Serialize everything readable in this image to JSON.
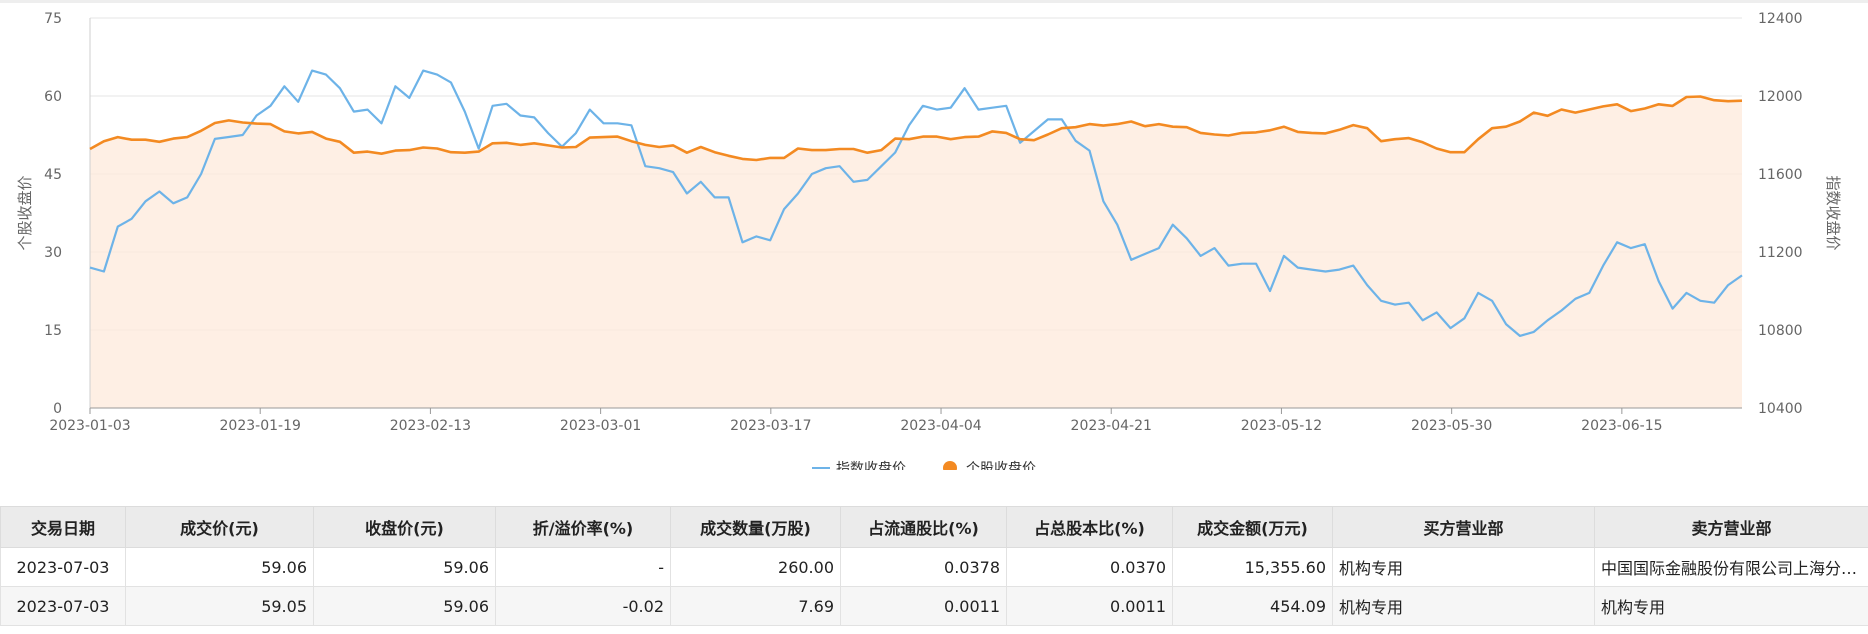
{
  "chart_data": {
    "type": "line",
    "x_ticks": [
      "2023-01-03",
      "2023-01-19",
      "2023-02-13",
      "2023-03-01",
      "2023-03-17",
      "2023-04-04",
      "2023-04-21",
      "2023-05-12",
      "2023-05-30",
      "2023-06-15"
    ],
    "y_left": {
      "label": "个股收盘价",
      "min": 0,
      "max": 75,
      "ticks": [
        0,
        15,
        30,
        45,
        60,
        75
      ]
    },
    "y_right": {
      "label": "指数收盘价",
      "min": 10400,
      "max": 12400,
      "ticks": [
        10400,
        10800,
        11200,
        11600,
        12000,
        12400
      ]
    },
    "grid": true,
    "legend_position": "bottom",
    "series": [
      {
        "name": "指数收盘价",
        "axis": "right",
        "color": "#6db3e8",
        "marker": "line",
        "values": [
          11120,
          11100,
          11330,
          11370,
          11460,
          11510,
          11450,
          11480,
          11600,
          11780,
          11790,
          11800,
          11900,
          11950,
          12050,
          11970,
          12130,
          12110,
          12040,
          11920,
          11930,
          11860,
          12050,
          11990,
          12130,
          12110,
          12070,
          11920,
          11730,
          11950,
          11960,
          11900,
          11890,
          11810,
          11740,
          11810,
          11930,
          11860,
          11860,
          11850,
          11640,
          11630,
          11610,
          11500,
          11560,
          11480,
          11480,
          11250,
          11280,
          11260,
          11420,
          11500,
          11600,
          11630,
          11640,
          11560,
          11570,
          11640,
          11710,
          11850,
          11950,
          11930,
          11940,
          12040,
          11930,
          11940,
          11950,
          11760,
          11820,
          11880,
          11880,
          11770,
          11720,
          11460,
          11340,
          11160,
          11190,
          11220,
          11340,
          11270,
          11180,
          11220,
          11130,
          11140,
          11140,
          11000,
          11180,
          11120,
          11110,
          11100,
          11110,
          11130,
          11030,
          10950,
          10930,
          10940,
          10850,
          10890,
          10810,
          10860,
          10990,
          10950,
          10830,
          10770,
          10790,
          10850,
          10900,
          10960,
          10990,
          11130,
          11250,
          11220,
          11240,
          11050,
          10910,
          10990,
          10950,
          10940,
          11030,
          11080
        ]
      },
      {
        "name": "个股收盘价",
        "axis": "left",
        "color": "#f38a22",
        "marker": "dot",
        "area": true,
        "values": [
          49.8,
          51.3,
          52.1,
          51.6,
          51.6,
          51.2,
          51.8,
          52.1,
          53.3,
          54.8,
          55.3,
          54.9,
          54.7,
          54.6,
          53.2,
          52.8,
          53.1,
          51.8,
          51.2,
          49.1,
          49.3,
          48.9,
          49.5,
          49.6,
          50.1,
          49.9,
          49.2,
          49.1,
          49.3,
          50.9,
          51.0,
          50.6,
          50.9,
          50.5,
          50.1,
          50.2,
          52.0,
          52.1,
          52.2,
          51.3,
          50.6,
          50.2,
          50.5,
          49.1,
          50.2,
          49.2,
          48.5,
          47.9,
          47.7,
          48.1,
          48.1,
          49.9,
          49.6,
          49.6,
          49.8,
          49.8,
          49.1,
          49.6,
          51.8,
          51.7,
          52.2,
          52.2,
          51.7,
          52.1,
          52.2,
          53.2,
          52.9,
          51.7,
          51.5,
          52.6,
          53.8,
          54.0,
          54.6,
          54.3,
          54.6,
          55.1,
          54.2,
          54.6,
          54.1,
          54.0,
          52.9,
          52.6,
          52.4,
          52.9,
          53.0,
          53.4,
          54.1,
          53.1,
          52.9,
          52.8,
          53.5,
          54.4,
          53.8,
          51.3,
          51.7,
          51.9,
          51.1,
          49.9,
          49.2,
          49.2,
          51.7,
          53.8,
          54.1,
          55.1,
          56.8,
          56.2,
          57.4,
          56.8,
          57.4,
          58.0,
          58.4,
          57.1,
          57.6,
          58.4,
          58.1,
          59.8,
          59.9,
          59.2,
          59.0,
          59.1
        ]
      }
    ]
  },
  "table": {
    "headers": [
      "交易日期",
      "成交价(元)",
      "收盘价(元)",
      "折/溢价率(%)",
      "成交数量(万股)",
      "占流通股比(%)",
      "占总股本比(%)",
      "成交金额(万元)",
      "买方营业部",
      "卖方营业部"
    ],
    "rows": [
      [
        "2023-07-03",
        "59.06",
        "59.06",
        "-",
        "260.00",
        "0.0378",
        "0.0370",
        "15,355.60",
        "机构专用",
        "中国国际金融股份有限公司上海分公司"
      ],
      [
        "2023-07-03",
        "59.05",
        "59.06",
        "-0.02",
        "7.69",
        "0.0011",
        "0.0011",
        "454.09",
        "机构专用",
        "机构专用"
      ]
    ]
  }
}
